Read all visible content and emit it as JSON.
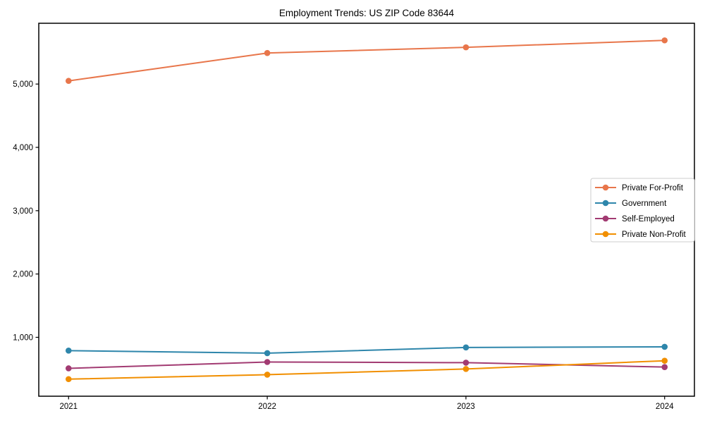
{
  "figure": {
    "background": "#ffffff",
    "axis_color": "#000000",
    "text_color": "#000000",
    "legend_border_color": "#cccccc"
  },
  "chart_data": {
    "type": "line",
    "title": "Employment Trends: US ZIP Code 83644",
    "xlabel": "",
    "ylabel": "",
    "x": [
      2021,
      2022,
      2023,
      2024
    ],
    "x_tick_labels": [
      "2021",
      "2022",
      "2023",
      "2024"
    ],
    "y_ticks": [
      1000,
      2000,
      3000,
      4000,
      5000
    ],
    "y_tick_labels": [
      "1,000",
      "2,000",
      "3,000",
      "4,000",
      "5,000"
    ],
    "xlim": [
      2020.85,
      2024.15
    ],
    "ylim": [
      70,
      5960
    ],
    "grid": false,
    "legend_position": "center right",
    "marker": "circle",
    "line_width": 2,
    "series": [
      {
        "name": "Private For-Profit",
        "color": "#E8764B",
        "values": [
          5050,
          5490,
          5580,
          5690
        ]
      },
      {
        "name": "Government",
        "color": "#2E86AB",
        "values": [
          790,
          750,
          840,
          850
        ]
      },
      {
        "name": "Self-Employed",
        "color": "#A23B72",
        "values": [
          510,
          610,
          600,
          530
        ]
      },
      {
        "name": "Private Non-Profit",
        "color": "#F18F01",
        "values": [
          340,
          410,
          500,
          630
        ]
      }
    ]
  }
}
